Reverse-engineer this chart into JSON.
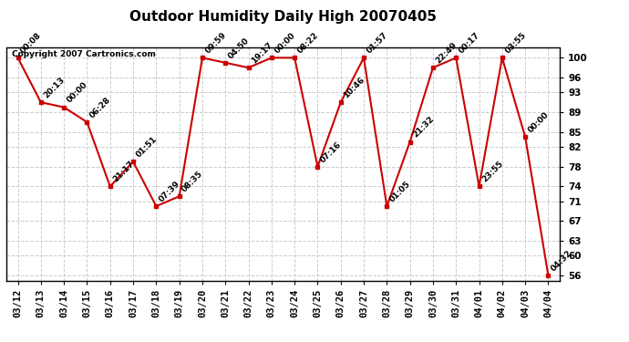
{
  "title": "Outdoor Humidity Daily High 20070405",
  "copyright": "Copyright 2007 Cartronics.com",
  "x_labels": [
    "03/12",
    "03/13",
    "03/14",
    "03/15",
    "03/16",
    "03/17",
    "03/18",
    "03/19",
    "03/20",
    "03/21",
    "03/22",
    "03/23",
    "03/24",
    "03/25",
    "03/26",
    "03/27",
    "03/28",
    "03/29",
    "03/30",
    "03/31",
    "04/01",
    "04/02",
    "04/03",
    "04/04"
  ],
  "y_values": [
    100,
    91,
    90,
    87,
    74,
    79,
    70,
    72,
    100,
    99,
    98,
    100,
    100,
    78,
    91,
    100,
    70,
    83,
    98,
    100,
    74,
    100,
    84,
    56
  ],
  "point_labels": [
    "00:08",
    "20:13",
    "00:00",
    "06:28",
    "21:17",
    "01:51",
    "07:39",
    "08:35",
    "09:59",
    "04:50",
    "19:17",
    "00:00",
    "08:22",
    "07:16",
    "10:46",
    "01:57",
    "01:05",
    "21:32",
    "22:49",
    "00:17",
    "23:55",
    "03:55",
    "00:00",
    "04:32"
  ],
  "line_color": "#cc0000",
  "marker_color": "#cc0000",
  "bg_color": "#ffffff",
  "grid_color": "#cccccc",
  "ylim": [
    55,
    102
  ],
  "yticks": [
    56,
    60,
    63,
    67,
    71,
    74,
    78,
    82,
    85,
    89,
    93,
    96,
    100
  ],
  "title_fontsize": 11,
  "label_fontsize": 6.5,
  "tick_fontsize": 7.5
}
